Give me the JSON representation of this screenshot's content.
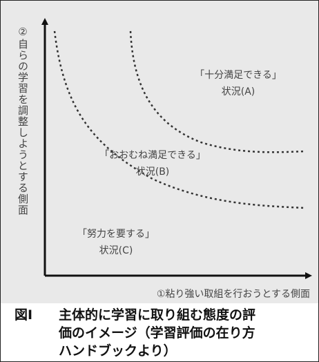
{
  "diagram": {
    "y_axis_label": "②自らの学習を調整しようとする側面",
    "x_axis_label": "①粘り強い取組を行おうとする側面",
    "regions": [
      {
        "title": "「十分満足できる」",
        "status": "状況(A)"
      },
      {
        "title": "「おおむね満足できる」",
        "status": "状況(B)"
      },
      {
        "title": "「努力を要する」",
        "status": "状況(C)"
      }
    ]
  },
  "caption": {
    "prefix": "図Ⅰ",
    "text": "主体的に学習に取り組む態度の評価のイメージ（学習評価の在り方ハンドブックより）"
  }
}
